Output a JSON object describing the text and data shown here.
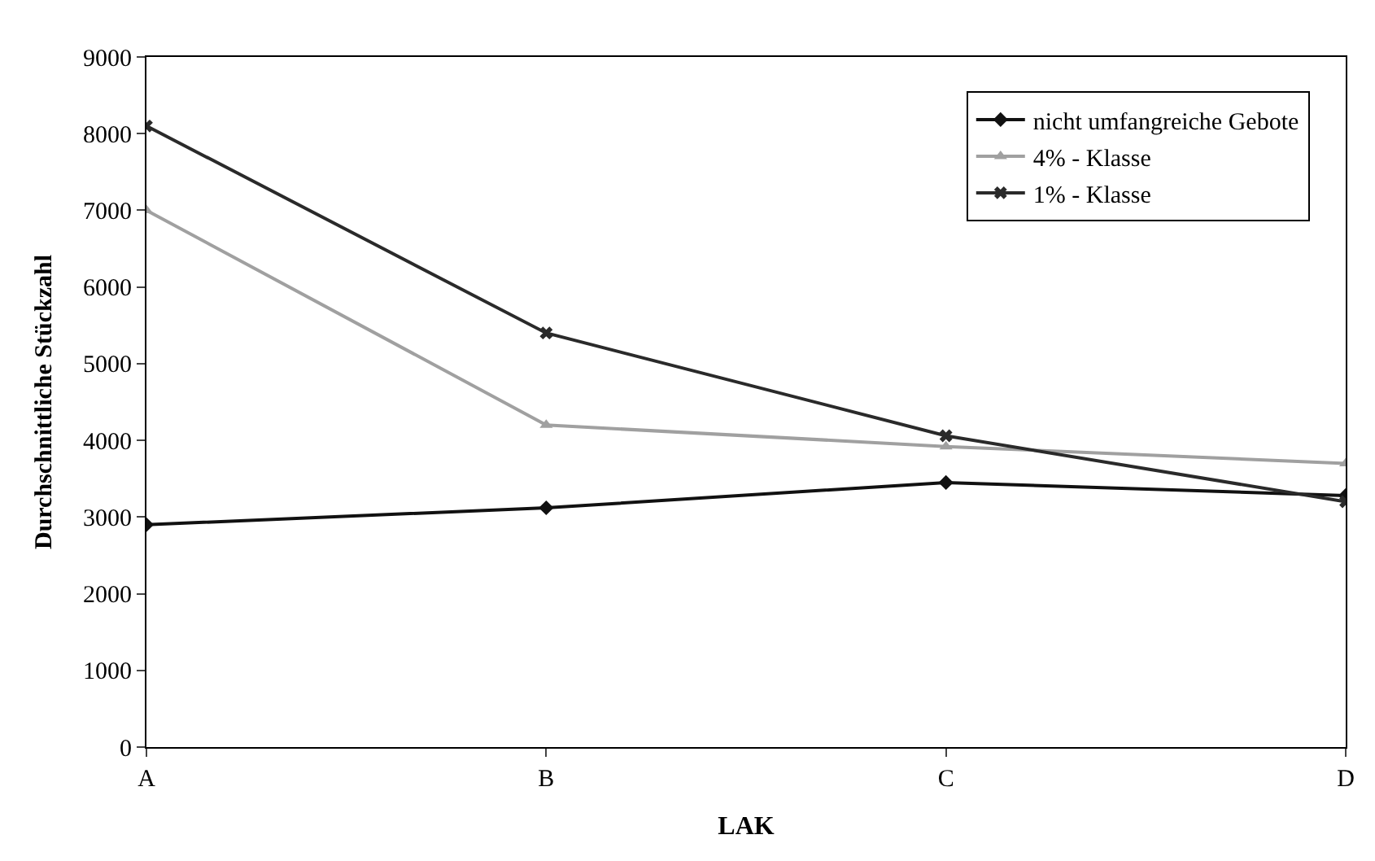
{
  "chart_data": {
    "type": "line",
    "xlabel": "LAK",
    "ylabel": "Durchschnittliche Stückzahl",
    "categories": [
      "A",
      "B",
      "C",
      "D"
    ],
    "series": [
      {
        "name": "nicht umfangreiche Gebote",
        "color": "#111111",
        "marker": "diamond",
        "values": [
          2900,
          3120,
          3450,
          3280
        ]
      },
      {
        "name": "4% - Klasse",
        "color": "#a0a0a0",
        "marker": "triangle",
        "values": [
          7000,
          4200,
          3920,
          3700
        ]
      },
      {
        "name": "1% - Klasse",
        "color": "#2a2a2a",
        "marker": "cross",
        "values": [
          8100,
          5400,
          4060,
          3200
        ]
      }
    ],
    "ylim": [
      0,
      9000
    ],
    "yticks": [
      0,
      1000,
      2000,
      3000,
      4000,
      5000,
      6000,
      7000,
      8000,
      9000
    ],
    "legend": "top right"
  }
}
